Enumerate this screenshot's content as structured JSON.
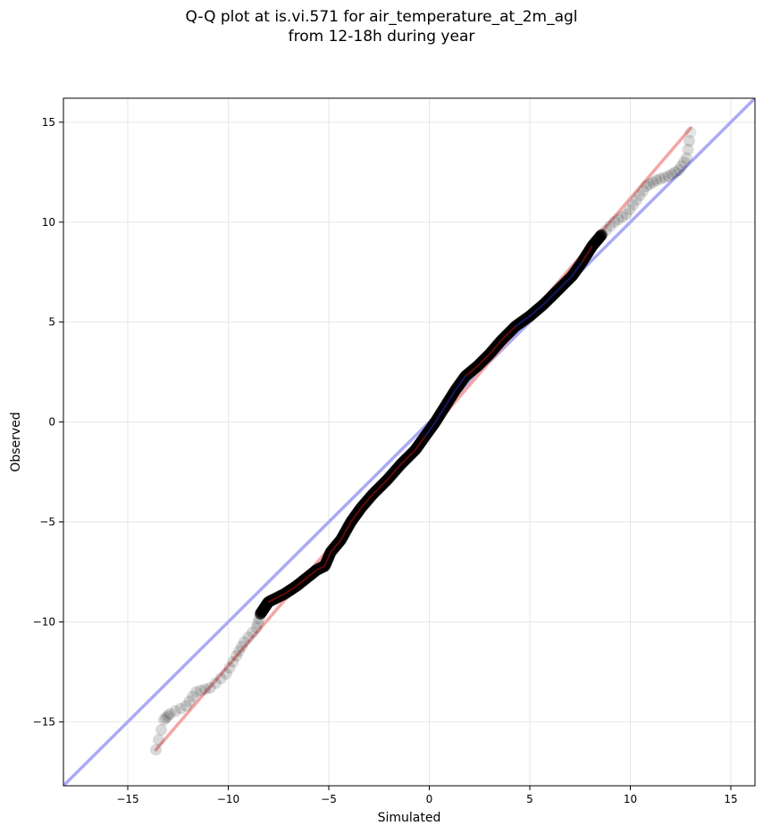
{
  "chart_data": {
    "type": "scatter",
    "title": "Q-Q plot at is.vi.571 for air_temperature_at_2m_agl",
    "subtitle": "from 12-18h during year",
    "xlabel": "Simulated",
    "ylabel": "Observed",
    "xlim": [
      -18.2,
      16.2
    ],
    "ylim": [
      -18.2,
      16.2
    ],
    "xticks": [
      -15,
      -10,
      -5,
      0,
      5,
      10,
      15
    ],
    "yticks": [
      -15,
      -10,
      -5,
      0,
      5,
      10,
      15
    ],
    "xtick_labels": [
      "−15",
      "−10",
      "−5",
      "0",
      "5",
      "10",
      "15"
    ],
    "ytick_labels": [
      "−15",
      "−10",
      "−5",
      "0",
      "5",
      "10",
      "15"
    ],
    "grid": true,
    "quantile_curve": [
      [
        -13.6,
        -16.4
      ],
      [
        -13.2,
        -14.9
      ],
      [
        -12.9,
        -14.6
      ],
      [
        -12.1,
        -14.2
      ],
      [
        -11.6,
        -13.5
      ],
      [
        -10.9,
        -13.3
      ],
      [
        -10.1,
        -12.6
      ],
      [
        -9.6,
        -11.7
      ],
      [
        -9.2,
        -11.0
      ],
      [
        -8.6,
        -10.3
      ],
      [
        -8.4,
        -9.6
      ],
      [
        -8.0,
        -9.0
      ],
      [
        -7.2,
        -8.6
      ],
      [
        -6.6,
        -8.2
      ],
      [
        -6.1,
        -7.8
      ],
      [
        -5.6,
        -7.4
      ],
      [
        -5.2,
        -7.2
      ],
      [
        -4.9,
        -6.5
      ],
      [
        -4.4,
        -5.9
      ],
      [
        -3.9,
        -5.0
      ],
      [
        -3.4,
        -4.3
      ],
      [
        -2.8,
        -3.6
      ],
      [
        -2.1,
        -2.9
      ],
      [
        -1.4,
        -2.1
      ],
      [
        -0.7,
        -1.4
      ],
      [
        -0.2,
        -0.7
      ],
      [
        0.3,
        0.0
      ],
      [
        0.8,
        0.8
      ],
      [
        1.3,
        1.6
      ],
      [
        1.8,
        2.3
      ],
      [
        2.4,
        2.8
      ],
      [
        3.0,
        3.4
      ],
      [
        3.6,
        4.1
      ],
      [
        4.3,
        4.8
      ],
      [
        5.0,
        5.3
      ],
      [
        5.7,
        5.9
      ],
      [
        6.4,
        6.6
      ],
      [
        7.1,
        7.3
      ],
      [
        7.6,
        8.0
      ],
      [
        8.1,
        8.8
      ],
      [
        8.6,
        9.4
      ],
      [
        9.2,
        10.0
      ],
      [
        9.8,
        10.4
      ],
      [
        10.3,
        11.1
      ],
      [
        10.8,
        11.8
      ],
      [
        11.3,
        12.1
      ],
      [
        11.9,
        12.3
      ],
      [
        12.4,
        12.6
      ],
      [
        12.8,
        13.2
      ],
      [
        13.0,
        14.5
      ]
    ],
    "reference_line": {
      "slope": 1,
      "intercept": 0,
      "color": "#aaaaf5"
    },
    "fit_line": {
      "x": [
        -13.6,
        13.0
      ],
      "y": [
        -16.4,
        14.7
      ],
      "color": "#f3a5a5"
    },
    "point_color": "#000000",
    "point_opacity_extremes": 0.1,
    "point_opacity_center": 0.55
  }
}
